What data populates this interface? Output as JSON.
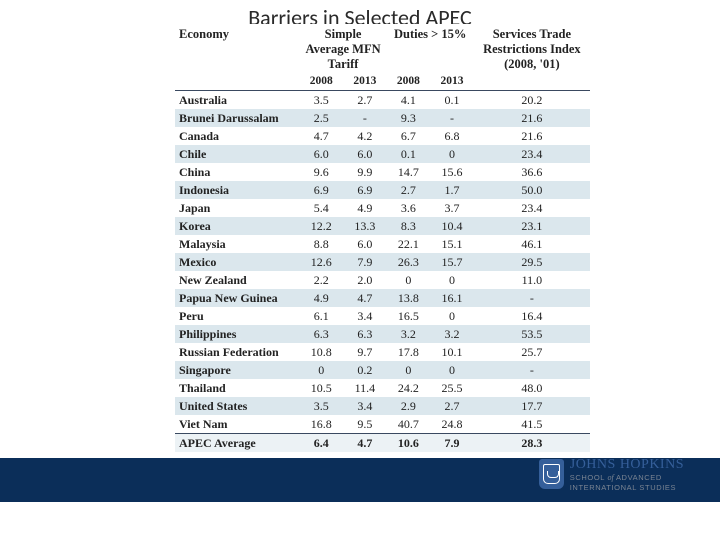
{
  "title": "Barriers in Selected APEC",
  "table": {
    "headers": [
      "Economy",
      "Simple Average MFN Tariff",
      "Duties > 15%",
      "Services Trade Restrictions Index (2008, '01)"
    ],
    "yearRow": [
      "",
      "2008",
      "2013",
      "2008",
      "2013",
      ""
    ],
    "rows": [
      {
        "alt": false,
        "cells": [
          "Australia",
          "3.5",
          "2.7",
          "4.1",
          "0.1",
          "20.2"
        ]
      },
      {
        "alt": true,
        "cells": [
          "Brunei Darussalam",
          "2.5",
          "-",
          "9.3",
          "-",
          "21.6"
        ]
      },
      {
        "alt": false,
        "cells": [
          "Canada",
          "4.7",
          "4.2",
          "6.7",
          "6.8",
          "21.6"
        ]
      },
      {
        "alt": true,
        "cells": [
          "Chile",
          "6.0",
          "6.0",
          "0.1",
          "0",
          "23.4"
        ]
      },
      {
        "alt": false,
        "cells": [
          "China",
          "9.6",
          "9.9",
          "14.7",
          "15.6",
          "36.6"
        ]
      },
      {
        "alt": true,
        "cells": [
          "Indonesia",
          "6.9",
          "6.9",
          "2.7",
          "1.7",
          "50.0"
        ]
      },
      {
        "alt": false,
        "cells": [
          "Japan",
          "5.4",
          "4.9",
          "3.6",
          "3.7",
          "23.4"
        ]
      },
      {
        "alt": true,
        "cells": [
          "Korea",
          "12.2",
          "13.3",
          "8.3",
          "10.4",
          "23.1"
        ]
      },
      {
        "alt": false,
        "cells": [
          "Malaysia",
          "8.8",
          "6.0",
          "22.1",
          "15.1",
          "46.1"
        ]
      },
      {
        "alt": true,
        "cells": [
          "Mexico",
          "12.6",
          "7.9",
          "26.3",
          "15.7",
          "29.5"
        ]
      },
      {
        "alt": false,
        "cells": [
          "New Zealand",
          "2.2",
          "2.0",
          "0",
          "0",
          "11.0"
        ]
      },
      {
        "alt": true,
        "cells": [
          "Papua New Guinea",
          "4.9",
          "4.7",
          "13.8",
          "16.1",
          "-"
        ]
      },
      {
        "alt": false,
        "cells": [
          "Peru",
          "6.1",
          "3.4",
          "16.5",
          "0",
          "16.4"
        ]
      },
      {
        "alt": true,
        "cells": [
          "Philippines",
          "6.3",
          "6.3",
          "3.2",
          "3.2",
          "53.5"
        ]
      },
      {
        "alt": false,
        "cells": [
          "Russian Federation",
          "10.8",
          "9.7",
          "17.8",
          "10.1",
          "25.7"
        ]
      },
      {
        "alt": true,
        "cells": [
          "Singapore",
          "0",
          "0.2",
          "0",
          "0",
          "-"
        ]
      },
      {
        "alt": false,
        "cells": [
          "Thailand",
          "10.5",
          "11.4",
          "24.2",
          "25.5",
          "48.0"
        ]
      },
      {
        "alt": true,
        "cells": [
          "United States",
          "3.5",
          "3.4",
          "2.9",
          "2.7",
          "17.7"
        ]
      },
      {
        "alt": false,
        "cells": [
          "Viet Nam",
          "16.8",
          "9.5",
          "40.7",
          "24.8",
          "41.5"
        ]
      }
    ],
    "avgRow": [
      "APEC Average",
      "6.4",
      "4.7",
      "10.6",
      "7.9",
      "28.3"
    ]
  },
  "logo": {
    "main": "JOHNS HOPKINS",
    "sub1": "SCHOOL",
    "subItalic": "of",
    "sub2": "ADVANCED",
    "sub3": "INTERNATIONAL STUDIES"
  },
  "colors": {
    "headerBorder": "#3a4960",
    "alt": "#dbe7ed",
    "avg": "#ecf2f5",
    "footer": "#0b2e59",
    "brand": "#355f9a"
  }
}
